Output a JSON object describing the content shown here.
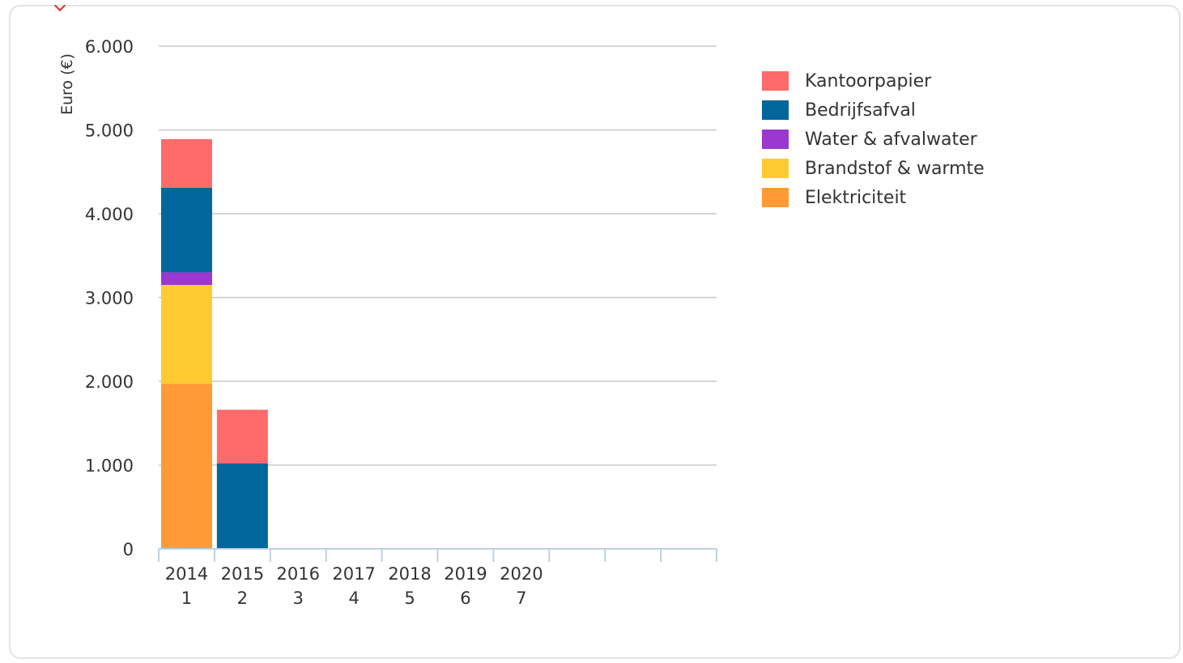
{
  "colors": {
    "Kantoorpapier": "#ff6a6a",
    "Bedrijfsafval": "#00669b",
    "Water & afvalwater": "#9b38cf",
    "Brandstof & warmte": "#ffca32",
    "Elektriciteit": "#ff9a36",
    "grid": "#c8c8c8",
    "axis": "#c0d0e0"
  },
  "chart_data": {
    "type": "bar",
    "stacked": true,
    "ylabel": "Euro (€)",
    "ylim": [
      0,
      6000
    ],
    "yticks": [
      "0",
      "1.000",
      "2.000",
      "3.000",
      "4.000",
      "5.000",
      "6.000"
    ],
    "ytick_values": [
      0,
      1000,
      2000,
      3000,
      4000,
      5000,
      6000
    ],
    "category_slots": 10,
    "categories": [
      {
        "year": "2014",
        "index": "1"
      },
      {
        "year": "2015",
        "index": "2"
      },
      {
        "year": "2016",
        "index": "3"
      },
      {
        "year": "2017",
        "index": "4"
      },
      {
        "year": "2018",
        "index": "5"
      },
      {
        "year": "2019",
        "index": "6"
      },
      {
        "year": "2020",
        "index": "7"
      }
    ],
    "series": [
      {
        "name": "Elektriciteit",
        "values": [
          1970,
          0,
          0,
          0,
          0,
          0,
          0
        ]
      },
      {
        "name": "Brandstof & warmte",
        "values": [
          1180,
          0,
          0,
          0,
          0,
          0,
          0
        ]
      },
      {
        "name": "Water & afvalwater",
        "values": [
          150,
          0,
          0,
          0,
          0,
          0,
          0
        ]
      },
      {
        "name": "Bedrijfsafval",
        "values": [
          1010,
          1020,
          0,
          0,
          0,
          0,
          0
        ]
      },
      {
        "name": "Kantoorpapier",
        "values": [
          580,
          640,
          0,
          0,
          0,
          0,
          0
        ]
      }
    ],
    "legend": [
      "Kantoorpapier",
      "Bedrijfsafval",
      "Water & afvalwater",
      "Brandstof & warmte",
      "Elektriciteit"
    ],
    "legend_position": "right",
    "grid": true
  }
}
